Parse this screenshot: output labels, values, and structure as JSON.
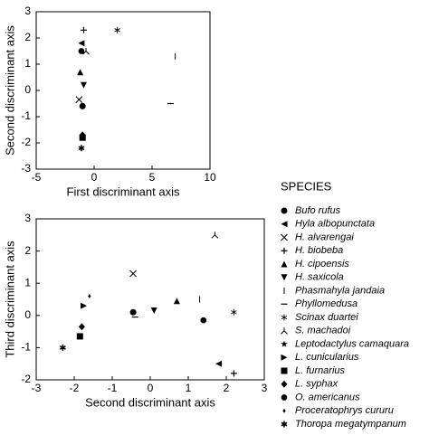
{
  "chart_data": [
    {
      "type": "scatter",
      "xlabel": "First discriminant axis",
      "ylabel": "Second discriminant axis",
      "xlim": [
        -5,
        10
      ],
      "ylim": [
        -3,
        3
      ],
      "xticks": [
        -5,
        0,
        5,
        10
      ],
      "yticks": [
        -3,
        -2,
        -1,
        0,
        1,
        2,
        3
      ],
      "x": [
        -1,
        -1.1,
        -1.3,
        -0.9,
        -1.2,
        -0.9,
        7,
        6.6,
        2,
        -0.7,
        null,
        null,
        -1,
        -1,
        -1.1,
        null,
        -1.1
      ],
      "y": [
        -0.6,
        1.8,
        -0.35,
        2.3,
        0.7,
        0.2,
        1.3,
        -0.5,
        2.3,
        1.5,
        null,
        null,
        -1.8,
        -1.7,
        1.5,
        null,
        -2.2
      ]
    },
    {
      "type": "scatter",
      "xlabel": "Second discriminant axis",
      "ylabel": "Third discriminant axis",
      "xlim": [
        -3,
        3
      ],
      "ylim": [
        -2,
        3
      ],
      "xticks": [
        -3,
        -2,
        -1,
        0,
        1,
        2,
        3
      ],
      "yticks": [
        -2,
        -1,
        0,
        1,
        2,
        3
      ],
      "x": [
        -0.45,
        1.8,
        -0.45,
        2.2,
        0.7,
        0.1,
        1.3,
        -0.4,
        2.2,
        1.7,
        null,
        -1.75,
        -1.85,
        -1.8,
        1.4,
        -1.6,
        -2.3
      ],
      "y": [
        0.1,
        -1.5,
        1.3,
        -1.8,
        0.45,
        0.15,
        0.5,
        -0.05,
        0.1,
        2.5,
        null,
        0.3,
        -0.65,
        -0.35,
        -0.15,
        0.6,
        -1.0
      ]
    }
  ],
  "legend": {
    "title": "SPECIES",
    "names": [
      "Bufo rufus",
      "Hyla albopunctata",
      "H. alvarengai",
      "H. biobeba",
      "H. cipoensis",
      "H. saxicola",
      "Phasmahyla jandaia",
      "Phyllomedusa",
      "Scinax duartei",
      "S. machadoi",
      "Leptodactylus camaquara",
      "L. cunicularius",
      "L. furnarius",
      "L. syphax",
      "O. americanus",
      "Proceratophrys cururu",
      "Thoropa megatympanum"
    ],
    "markers": [
      "circle",
      "triangle-left",
      "x",
      "plus",
      "triangle-up",
      "triangle-down",
      "vline",
      "hline",
      "asterisk-thin",
      "lambda",
      "star",
      "triangle-right",
      "square",
      "diamond",
      "octagon",
      "small-diamond",
      "asterisk"
    ]
  }
}
